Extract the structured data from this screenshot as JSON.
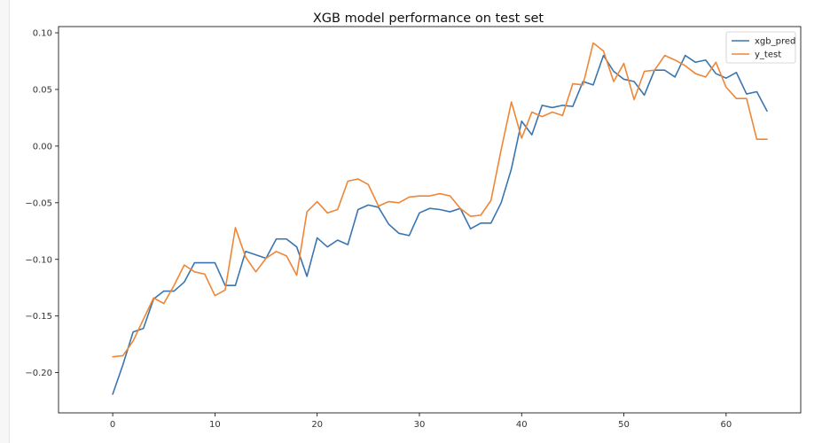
{
  "chart_data": {
    "type": "line",
    "title": "XGB model performance on test set",
    "xlabel": "",
    "ylabel": "",
    "xlim": [
      -5.3,
      67.3
    ],
    "ylim": [
      -0.2355,
      0.1055
    ],
    "x_ticks": [
      0,
      10,
      20,
      30,
      40,
      50,
      60
    ],
    "y_ticks": [
      0.1,
      0.05,
      0.0,
      -0.05,
      -0.1,
      -0.15,
      -0.2
    ],
    "x_tick_labels": [
      "0",
      "10",
      "20",
      "30",
      "40",
      "50",
      "60"
    ],
    "y_tick_labels": [
      "0.10",
      "0.05",
      "0.00",
      "−0.05",
      "−0.10",
      "−0.15",
      "−0.20"
    ],
    "grid": false,
    "legend_position": "top-right",
    "x": [
      0,
      1,
      2,
      3,
      4,
      5,
      6,
      7,
      8,
      9,
      10,
      11,
      12,
      13,
      14,
      15,
      16,
      17,
      18,
      19,
      20,
      21,
      22,
      23,
      24,
      25,
      26,
      27,
      28,
      29,
      30,
      31,
      32,
      33,
      34,
      35,
      36,
      37,
      38,
      39,
      40,
      41,
      42,
      43,
      44,
      45,
      46,
      47,
      48,
      49,
      50,
      51,
      52,
      53,
      54,
      55,
      56,
      57,
      58,
      59,
      60,
      61,
      62,
      63,
      64
    ],
    "series": [
      {
        "name": "xgb_pred",
        "color": "#3b75af",
        "values": [
          -0.219,
          -0.193,
          -0.164,
          -0.161,
          -0.135,
          -0.128,
          -0.128,
          -0.12,
          -0.103,
          -0.103,
          -0.103,
          -0.123,
          -0.123,
          -0.093,
          -0.096,
          -0.099,
          -0.082,
          -0.082,
          -0.089,
          -0.115,
          -0.081,
          -0.089,
          -0.083,
          -0.087,
          -0.056,
          -0.052,
          -0.054,
          -0.069,
          -0.077,
          -0.079,
          -0.059,
          -0.055,
          -0.056,
          -0.058,
          -0.055,
          -0.073,
          -0.068,
          -0.068,
          -0.05,
          -0.02,
          0.022,
          0.01,
          0.036,
          0.034,
          0.036,
          0.035,
          0.057,
          0.054,
          0.08,
          0.066,
          0.059,
          0.057,
          0.045,
          0.067,
          0.067,
          0.061,
          0.08,
          0.074,
          0.076,
          0.064,
          0.06,
          0.065,
          0.046,
          0.048,
          0.031
        ]
      },
      {
        "name": "y_test",
        "color": "#ef8636",
        "values": [
          -0.186,
          -0.185,
          -0.172,
          -0.153,
          -0.134,
          -0.139,
          -0.123,
          -0.105,
          -0.111,
          -0.113,
          -0.132,
          -0.127,
          -0.072,
          -0.098,
          -0.111,
          -0.099,
          -0.093,
          -0.097,
          -0.114,
          -0.058,
          -0.049,
          -0.059,
          -0.056,
          -0.031,
          -0.029,
          -0.034,
          -0.053,
          -0.049,
          -0.05,
          -0.045,
          -0.044,
          -0.044,
          -0.042,
          -0.044,
          -0.055,
          -0.062,
          -0.061,
          -0.048,
          -0.003,
          0.039,
          0.007,
          0.03,
          0.026,
          0.03,
          0.027,
          0.055,
          0.054,
          0.091,
          0.084,
          0.057,
          0.073,
          0.041,
          0.066,
          0.067,
          0.08,
          0.076,
          0.071,
          0.064,
          0.061,
          0.074,
          0.052,
          0.042,
          0.042,
          0.006,
          0.006
        ]
      }
    ]
  }
}
